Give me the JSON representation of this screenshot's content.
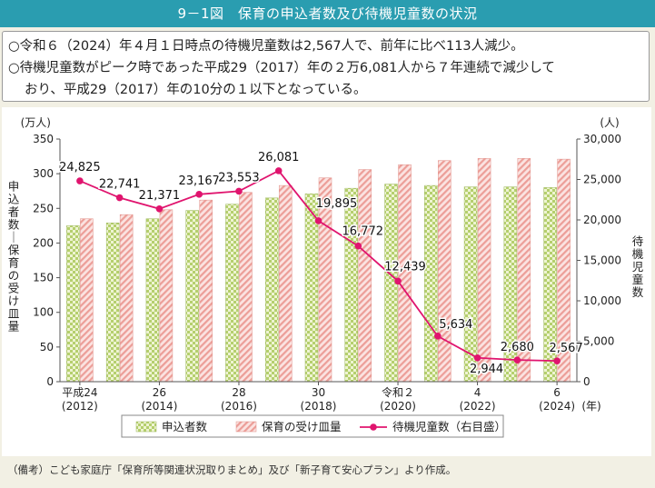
{
  "header": {
    "title": "9－1図　保育の申込者数及び待機児童数の状況"
  },
  "notes": {
    "line1": "○令和６（2024）年４月１日時点の待機児童数は2,567人で、前年に比べ113人減少。",
    "line2": "○待機児童数がピーク時であった平成29（2017）年の２万6,081人から７年連続で減少して",
    "line3": "おり、平成29（2017）年の10分の１以下となっている。"
  },
  "source": "（備考）こども家庭庁「保育所等関連状況取りまとめ」及び「新子育て安心プラン」より作成。",
  "colors": {
    "title_bg": "#2a9db0",
    "applicants_bar": "#c9dc8c",
    "capacity_bar": "#f2b3ae",
    "waiting_line": "#e0146e"
  },
  "chart_data": {
    "type": "bar+line",
    "categories": [
      "2012",
      "2013",
      "2014",
      "2015",
      "2016",
      "2017",
      "2018",
      "2019",
      "2020",
      "2021",
      "2022",
      "2023",
      "2024"
    ],
    "x_tick_labels": [
      {
        "index": 0,
        "line1": "平成24",
        "line2": "(2012)"
      },
      {
        "index": 2,
        "line1": "26",
        "line2": "(2014)"
      },
      {
        "index": 4,
        "line1": "28",
        "line2": "(2016)"
      },
      {
        "index": 6,
        "line1": "30",
        "line2": "(2018)"
      },
      {
        "index": 8,
        "line1": "令和２",
        "line2": "(2020)"
      },
      {
        "index": 10,
        "line1": "4",
        "line2": "(2022)"
      },
      {
        "index": 12,
        "line1": "6",
        "line2": "(2024)"
      }
    ],
    "x_unit": "(年)",
    "series": [
      {
        "name": "申込者数",
        "type": "bar",
        "axis": "left",
        "values": [
          225,
          229,
          235,
          247,
          256,
          265,
          271,
          279,
          285,
          283,
          281,
          281,
          280
        ]
      },
      {
        "name": "保育の受け皿量",
        "type": "bar",
        "axis": "left",
        "values": [
          235,
          241,
          248,
          262,
          273,
          283,
          294,
          306,
          313,
          319,
          322,
          322,
          321
        ]
      },
      {
        "name": "待機児童数（右目盛）",
        "type": "line",
        "axis": "right",
        "values": [
          24825,
          22741,
          21371,
          23167,
          23553,
          26081,
          19895,
          16772,
          12439,
          5634,
          2944,
          2680,
          2567
        ],
        "labels": [
          "24,825",
          "22,741",
          "21,371",
          "23,167",
          "23,553",
          "26,081",
          "19,895",
          "16,772",
          "12,439",
          "5,634",
          "2,944",
          "2,680",
          "2,567"
        ]
      }
    ],
    "left_axis": {
      "unit": "(万人)",
      "label": "申込者数／保育の受け皿量",
      "ylim": [
        0,
        350
      ],
      "ticks": [
        "0",
        "50",
        "100",
        "150",
        "200",
        "250",
        "300",
        "350"
      ]
    },
    "right_axis": {
      "unit": "(人)",
      "label": "待機児童数",
      "ylim": [
        0,
        30000
      ],
      "ticks": [
        "0",
        "5,000",
        "10,000",
        "15,000",
        "20,000",
        "25,000",
        "30,000"
      ]
    },
    "legend_position": "bottom",
    "grid": false
  }
}
